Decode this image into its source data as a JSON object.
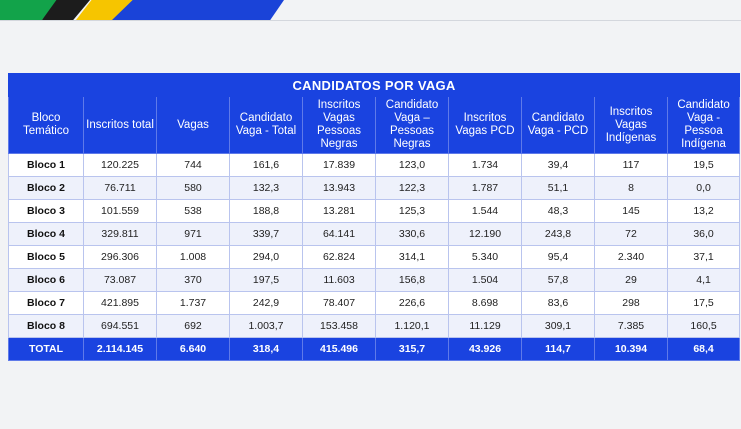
{
  "table": {
    "title": "CANDIDATOS POR VAGA",
    "headers": [
      "Bloco Temático",
      "Inscritos total",
      "Vagas",
      "Candidato Vaga - Total",
      "Inscritos Vagas Pessoas Negras",
      "Candidato Vaga – Pessoas Negras",
      "Inscritos Vagas PCD",
      "Candidato Vaga - PCD",
      "Inscritos Vagas Indígenas",
      "Candidato Vaga - Pessoa Indígena"
    ],
    "rows": [
      [
        "Bloco 1",
        "120.225",
        "744",
        "161,6",
        "17.839",
        "123,0",
        "1.734",
        "39,4",
        "117",
        "19,5"
      ],
      [
        "Bloco 2",
        "76.711",
        "580",
        "132,3",
        "13.943",
        "122,3",
        "1.787",
        "51,1",
        "8",
        "0,0"
      ],
      [
        "Bloco 3",
        "101.559",
        "538",
        "188,8",
        "13.281",
        "125,3",
        "1.544",
        "48,3",
        "145",
        "13,2"
      ],
      [
        "Bloco 4",
        "329.811",
        "971",
        "339,7",
        "64.141",
        "330,6",
        "12.190",
        "243,8",
        "72",
        "36,0"
      ],
      [
        "Bloco 5",
        "296.306",
        "1.008",
        "294,0",
        "62.824",
        "314,1",
        "5.340",
        "95,4",
        "2.340",
        "37,1"
      ],
      [
        "Bloco 6",
        "73.087",
        "370",
        "197,5",
        "11.603",
        "156,8",
        "1.504",
        "57,8",
        "29",
        "4,1"
      ],
      [
        "Bloco 7",
        "421.895",
        "1.737",
        "242,9",
        "78.407",
        "226,6",
        "8.698",
        "83,6",
        "298",
        "17,5"
      ],
      [
        "Bloco 8",
        "694.551",
        "692",
        "1.003,7",
        "153.458",
        "1.120,1",
        "11.129",
        "309,1",
        "7.385",
        "160,5"
      ]
    ],
    "total": [
      "TOTAL",
      "2.114.145",
      "6.640",
      "318,4",
      "415.496",
      "315,7",
      "43.926",
      "114,7",
      "10.394",
      "68,4"
    ]
  }
}
